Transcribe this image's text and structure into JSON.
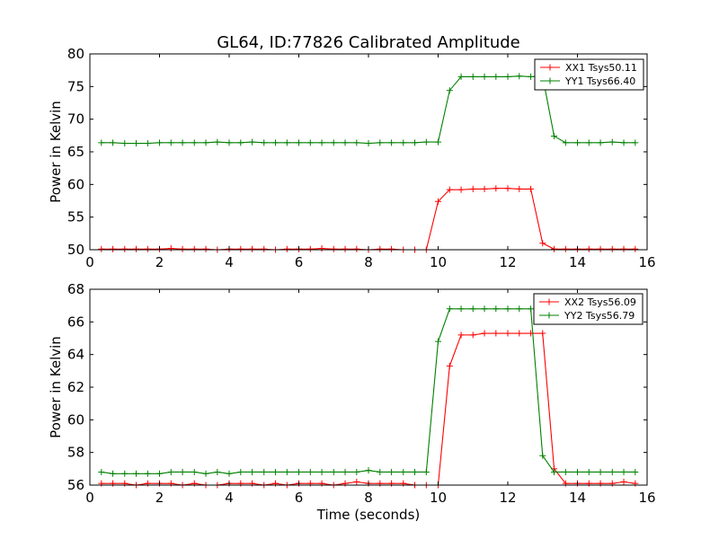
{
  "figure": {
    "title": "GL64, ID:77826 Calibrated Amplitude",
    "xlabel": "Time (seconds)"
  },
  "chart_data": [
    {
      "type": "line",
      "title": "GL64, ID:77826 Calibrated Amplitude",
      "xlabel": "",
      "ylabel": "Power in Kelvin",
      "xlim": [
        0,
        16
      ],
      "ylim": [
        50,
        80
      ],
      "xticks": [
        "0",
        "2",
        "4",
        "6",
        "8",
        "10",
        "12",
        "14",
        "16"
      ],
      "yticks": [
        "50",
        "55",
        "60",
        "65",
        "70",
        "75",
        "80"
      ],
      "grid": false,
      "legend_position": "top-right",
      "x": [
        0.33,
        0.66,
        1.0,
        1.33,
        1.66,
        2.0,
        2.33,
        2.66,
        3.0,
        3.33,
        3.66,
        4.0,
        4.33,
        4.66,
        5.0,
        5.33,
        5.66,
        6.0,
        6.33,
        6.66,
        7.0,
        7.33,
        7.66,
        8.0,
        8.33,
        8.66,
        9.0,
        9.33,
        9.66,
        10.0,
        10.33,
        10.66,
        11.0,
        11.33,
        11.66,
        12.0,
        12.33,
        12.66,
        13.0,
        13.33,
        13.66,
        14.0,
        14.33,
        14.66,
        15.0,
        15.33,
        15.66
      ],
      "series": [
        {
          "name": "XX1 Tsys50.11",
          "color": "#ff0000",
          "values": [
            50.1,
            50.1,
            50.1,
            50.1,
            50.1,
            50.1,
            50.2,
            50.1,
            50.1,
            50.1,
            50.0,
            50.1,
            50.1,
            50.1,
            50.1,
            50.0,
            50.1,
            50.1,
            50.1,
            50.2,
            50.1,
            50.1,
            50.1,
            50.0,
            50.1,
            50.1,
            50.0,
            50.0,
            50.0,
            57.4,
            59.2,
            59.2,
            59.3,
            59.3,
            59.4,
            59.4,
            59.3,
            59.3,
            51.0,
            50.1,
            50.1,
            50.1,
            50.1,
            50.1,
            50.1,
            50.1,
            50.1
          ]
        },
        {
          "name": "YY1 Tsys66.40",
          "color": "#008000",
          "values": [
            66.4,
            66.4,
            66.3,
            66.3,
            66.3,
            66.4,
            66.4,
            66.4,
            66.4,
            66.4,
            66.5,
            66.4,
            66.4,
            66.5,
            66.4,
            66.4,
            66.4,
            66.4,
            66.4,
            66.4,
            66.4,
            66.4,
            66.4,
            66.3,
            66.4,
            66.4,
            66.4,
            66.4,
            66.5,
            66.5,
            74.4,
            76.5,
            76.5,
            76.5,
            76.5,
            76.5,
            76.6,
            76.5,
            76.6,
            67.4,
            66.4,
            66.4,
            66.4,
            66.4,
            66.5,
            66.4,
            66.4
          ]
        }
      ]
    },
    {
      "type": "line",
      "title": "",
      "xlabel": "Time (seconds)",
      "ylabel": "Power in Kelvin",
      "xlim": [
        0,
        16
      ],
      "ylim": [
        56,
        68
      ],
      "xticks": [
        "0",
        "2",
        "4",
        "6",
        "8",
        "10",
        "12",
        "14",
        "16"
      ],
      "yticks": [
        "56",
        "58",
        "60",
        "62",
        "64",
        "66",
        "68"
      ],
      "grid": false,
      "legend_position": "top-right",
      "x": [
        0.33,
        0.66,
        1.0,
        1.33,
        1.66,
        2.0,
        2.33,
        2.66,
        3.0,
        3.33,
        3.66,
        4.0,
        4.33,
        4.66,
        5.0,
        5.33,
        5.66,
        6.0,
        6.33,
        6.66,
        7.0,
        7.33,
        7.66,
        8.0,
        8.33,
        8.66,
        9.0,
        9.33,
        9.66,
        10.0,
        10.33,
        10.66,
        11.0,
        11.33,
        11.66,
        12.0,
        12.33,
        12.66,
        13.0,
        13.33,
        13.66,
        14.0,
        14.33,
        14.66,
        15.0,
        15.33,
        15.66
      ],
      "series": [
        {
          "name": "XX2 Tsys56.09",
          "color": "#ff0000",
          "values": [
            56.1,
            56.1,
            56.1,
            56.0,
            56.1,
            56.1,
            56.1,
            56.0,
            56.1,
            56.0,
            56.0,
            56.1,
            56.1,
            56.1,
            56.0,
            56.1,
            56.0,
            56.1,
            56.1,
            56.1,
            56.0,
            56.1,
            56.2,
            56.1,
            56.1,
            56.1,
            56.1,
            56.0,
            56.0,
            56.0,
            63.3,
            65.2,
            65.2,
            65.3,
            65.3,
            65.3,
            65.3,
            65.3,
            65.3,
            57.0,
            56.1,
            56.1,
            56.1,
            56.1,
            56.1,
            56.2,
            56.1
          ]
        },
        {
          "name": "YY2 Tsys56.79",
          "color": "#008000",
          "values": [
            56.8,
            56.7,
            56.7,
            56.7,
            56.7,
            56.7,
            56.8,
            56.8,
            56.8,
            56.7,
            56.8,
            56.7,
            56.8,
            56.8,
            56.8,
            56.8,
            56.8,
            56.8,
            56.8,
            56.8,
            56.8,
            56.8,
            56.8,
            56.9,
            56.8,
            56.8,
            56.8,
            56.8,
            56.8,
            64.8,
            66.8,
            66.8,
            66.8,
            66.8,
            66.8,
            66.8,
            66.8,
            66.8,
            57.8,
            56.8,
            56.8,
            56.8,
            56.8,
            56.8,
            56.8,
            56.8,
            56.8
          ]
        }
      ]
    }
  ]
}
